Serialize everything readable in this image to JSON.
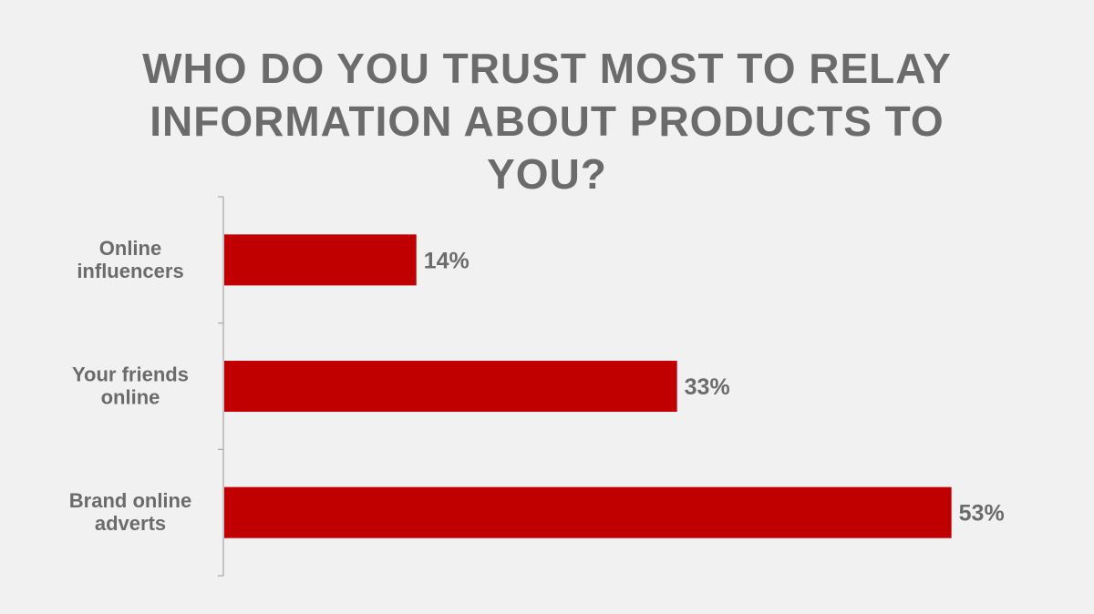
{
  "chart_data": {
    "type": "bar",
    "orientation": "horizontal",
    "title": "WHO DO YOU TRUST MOST TO RELAY INFORMATION ABOUT PRODUCTS TO YOU?",
    "categories": [
      [
        "Online",
        "influencers"
      ],
      [
        "Your friends",
        "online"
      ],
      [
        "Brand online",
        "adverts"
      ]
    ],
    "values": [
      14,
      33,
      53
    ],
    "data_labels": [
      "14%",
      "33%",
      "53%"
    ],
    "xlim": [
      0,
      60
    ],
    "grid": false,
    "legend": "none",
    "bar_color": "#c00000",
    "text_color": "#6b6b6b",
    "axis_color": "#a6a6a6",
    "background": "#f2f1f2"
  }
}
